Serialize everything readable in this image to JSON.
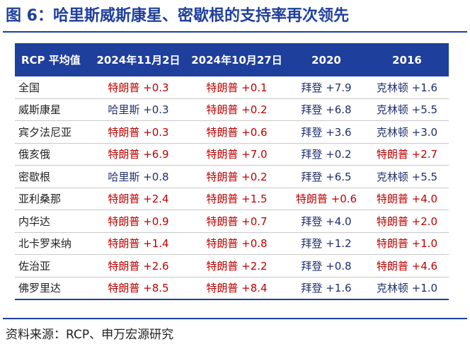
{
  "title": "图 6：哈里斯威斯康星、密歇根的支持率再次领先",
  "colors": {
    "brand_blue": "#1f3f9c",
    "trump_red": "#c00000",
    "democrat_navy": "#1f2f6e"
  },
  "table": {
    "headers": [
      "RCP 平均值",
      "2024年11月2日",
      "2024年10月27日",
      "2020",
      "2016"
    ],
    "rows": [
      {
        "state": "全国",
        "cells": [
          {
            "text": "特朗普 +0.3",
            "party": "rep"
          },
          {
            "text": "特朗普 +0.1",
            "party": "rep"
          },
          {
            "text": "拜登 +7.9",
            "party": "dem"
          },
          {
            "text": "克林顿 +1.6",
            "party": "dem"
          }
        ]
      },
      {
        "state": "威斯康星",
        "cells": [
          {
            "text": "哈里斯 +0.3",
            "party": "dem"
          },
          {
            "text": "特朗普 +0.2",
            "party": "rep"
          },
          {
            "text": "拜登 +6.8",
            "party": "dem"
          },
          {
            "text": "克林顿 +5.5",
            "party": "dem"
          }
        ]
      },
      {
        "state": "宾夕法尼亚",
        "cells": [
          {
            "text": "特朗普 +0.3",
            "party": "rep"
          },
          {
            "text": "特朗普 +0.6",
            "party": "rep"
          },
          {
            "text": "拜登 +3.6",
            "party": "dem"
          },
          {
            "text": "克林顿 +3.0",
            "party": "dem"
          }
        ]
      },
      {
        "state": "俄亥俄",
        "cells": [
          {
            "text": "特朗普 +6.9",
            "party": "rep"
          },
          {
            "text": "特朗普 +7.0",
            "party": "rep"
          },
          {
            "text": "拜登 +0.2",
            "party": "dem"
          },
          {
            "text": "特朗普 +2.7",
            "party": "rep"
          }
        ]
      },
      {
        "state": "密歇根",
        "cells": [
          {
            "text": "哈里斯 +0.8",
            "party": "dem"
          },
          {
            "text": "特朗普 +0.2",
            "party": "rep"
          },
          {
            "text": "拜登 +6.5",
            "party": "dem"
          },
          {
            "text": "克林顿 +5.5",
            "party": "dem"
          }
        ]
      },
      {
        "state": "亚利桑那",
        "cells": [
          {
            "text": "特朗普 +2.4",
            "party": "rep"
          },
          {
            "text": "特朗普 +1.5",
            "party": "rep"
          },
          {
            "text": "特朗普 +0.6",
            "party": "rep"
          },
          {
            "text": "特朗普 +4.0",
            "party": "rep"
          }
        ]
      },
      {
        "state": "内华达",
        "cells": [
          {
            "text": "特朗普 +0.9",
            "party": "rep"
          },
          {
            "text": "特朗普 +0.7",
            "party": "rep"
          },
          {
            "text": "拜登 +4.0",
            "party": "dem"
          },
          {
            "text": "特朗普 +2.0",
            "party": "rep"
          }
        ]
      },
      {
        "state": "北卡罗来纳",
        "cells": [
          {
            "text": "特朗普 +1.4",
            "party": "rep"
          },
          {
            "text": "特朗普 +0.8",
            "party": "rep"
          },
          {
            "text": "拜登 +1.2",
            "party": "dem"
          },
          {
            "text": "特朗普 +1.0",
            "party": "rep"
          }
        ]
      },
      {
        "state": "佐治亚",
        "cells": [
          {
            "text": "特朗普 +2.6",
            "party": "rep"
          },
          {
            "text": "特朗普 +2.2",
            "party": "rep"
          },
          {
            "text": "拜登 +0.8",
            "party": "dem"
          },
          {
            "text": "特朗普 +4.6",
            "party": "rep"
          }
        ]
      },
      {
        "state": "佛罗里达",
        "cells": [
          {
            "text": "特朗普 +8.5",
            "party": "rep"
          },
          {
            "text": "特朗普 +8.4",
            "party": "rep"
          },
          {
            "text": "拜登 +1.6",
            "party": "dem"
          },
          {
            "text": "克林顿 +1.0",
            "party": "dem"
          }
        ]
      }
    ]
  },
  "source": "资料来源：RCP、申万宏源研究"
}
